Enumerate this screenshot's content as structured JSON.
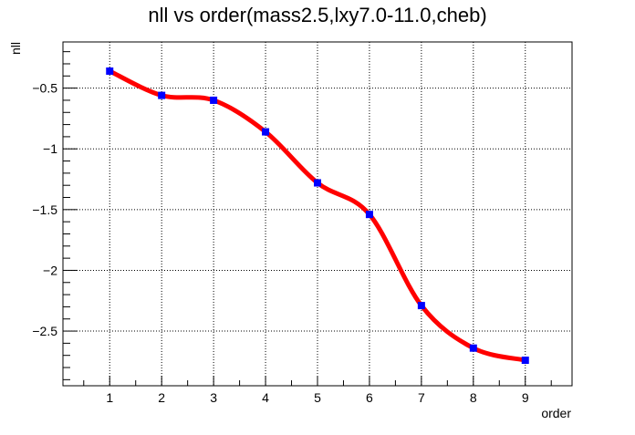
{
  "chart_data": {
    "type": "line",
    "title": "nll vs order(mass2.5,lxy7.0-11.0,cheb)",
    "xlabel": "order",
    "ylabel": "nll",
    "xlim": [
      0.1,
      9.9
    ],
    "ylim": [
      -2.95,
      -0.12
    ],
    "x_ticks": [
      1,
      2,
      3,
      4,
      5,
      6,
      7,
      8,
      9
    ],
    "x_tick_labels": [
      "1",
      "2",
      "3",
      "4",
      "5",
      "6",
      "7",
      "8",
      "9"
    ],
    "y_ticks": [
      -0.5,
      -1,
      -1.5,
      -2,
      -2.5
    ],
    "y_tick_labels": [
      "−0.5",
      "−1",
      "−1.5",
      "−2",
      "−2.5"
    ],
    "grid": true,
    "series": [
      {
        "x": [
          1,
          2,
          3,
          4,
          5,
          6,
          7,
          8,
          9
        ],
        "values": [
          -0.36,
          -0.56,
          -0.6,
          -0.86,
          -1.28,
          -1.54,
          -2.29,
          -2.64,
          -2.74
        ],
        "line_color": "#ff0000",
        "marker_color": "#0000ff",
        "marker": "square",
        "smooth": true
      }
    ]
  }
}
